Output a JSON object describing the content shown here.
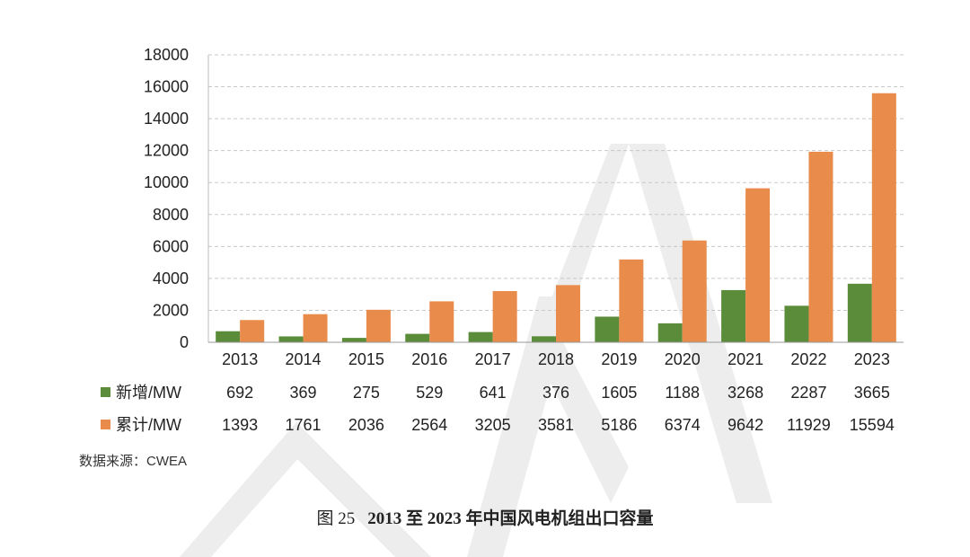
{
  "chart_data": {
    "type": "bar",
    "title": "",
    "xlabel": "",
    "ylabel": "",
    "ylim": [
      0,
      18000
    ],
    "yticks": [
      0,
      2000,
      4000,
      6000,
      8000,
      10000,
      12000,
      14000,
      16000,
      18000
    ],
    "grid": true,
    "categories": [
      "2013",
      "2014",
      "2015",
      "2016",
      "2017",
      "2018",
      "2019",
      "2020",
      "2021",
      "2022",
      "2023"
    ],
    "series": [
      {
        "name": "新增/MW",
        "color": "#5b8c3a",
        "values": [
          692,
          369,
          275,
          529,
          641,
          376,
          1605,
          1188,
          3268,
          2287,
          3665
        ]
      },
      {
        "name": "累计/MW",
        "color": "#e98b4a",
        "values": [
          1393,
          1761,
          2036,
          2564,
          3205,
          3581,
          5186,
          6374,
          9642,
          11929,
          15594
        ]
      }
    ],
    "legend": "data-table-below"
  },
  "source": "数据来源：CWEA",
  "caption": {
    "number": "图 25",
    "text": "2013 至 2023 年中国风电机组出口容量"
  },
  "watermark": "CWEA"
}
